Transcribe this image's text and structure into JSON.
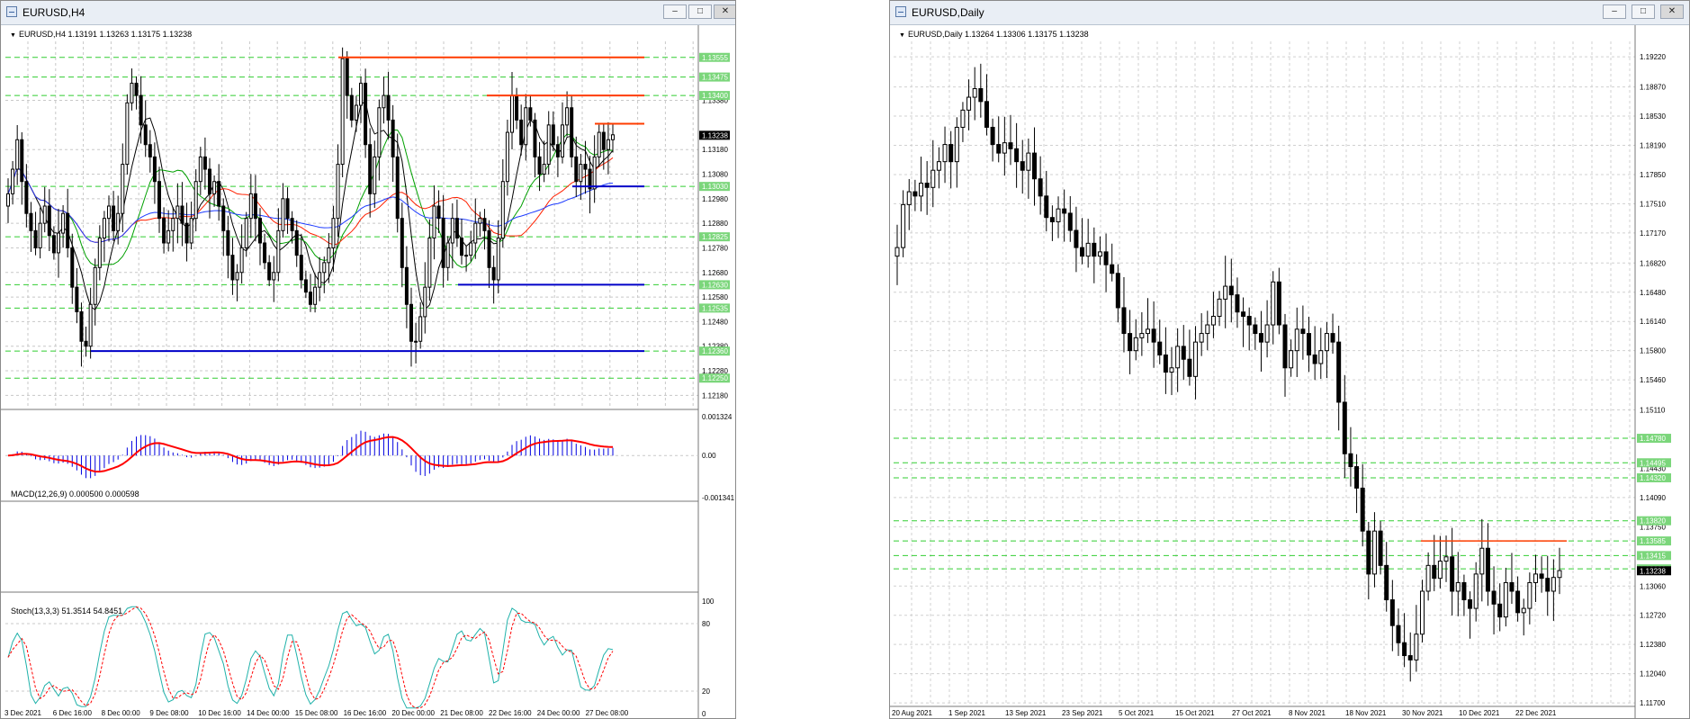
{
  "windows": [
    {
      "title": "EURUSD,H4",
      "quote": "EURUSD,H4  1.13191 1.13263 1.13175 1.13238",
      "price_axis": [
        "1.13380",
        "1.13180",
        "1.13080",
        "1.12980",
        "1.12880",
        "1.12780",
        "1.12680",
        "1.12580",
        "1.12480",
        "1.12380",
        "1.12280",
        "1.12180"
      ],
      "level_labels": [
        "1.13555",
        "1.13475",
        "1.13400",
        "1.13030",
        "1.12825",
        "1.12630",
        "1.12535",
        "1.12360",
        "1.12250"
      ],
      "current_price": "1.13238",
      "time_axis": [
        "3 Dec 2021",
        "6 Dec 16:00",
        "8 Dec 00:00",
        "9 Dec 08:00",
        "10 Dec 16:00",
        "14 Dec 00:00",
        "15 Dec 08:00",
        "16 Dec 16:00",
        "20 Dec 00:00",
        "21 Dec 08:00",
        "22 Dec 16:00",
        "24 Dec 00:00",
        "27 Dec 08:00"
      ],
      "macd_label": "MACD(12,26,9) 0.000500 0.000598",
      "macd_axis": [
        "0.001324",
        "0.00",
        "-0.001341"
      ],
      "stoch_label": "Stoch(13,3,3) 51.3514 54.8451",
      "stoch_axis": [
        "100",
        "80",
        "20",
        "0"
      ]
    },
    {
      "title": "EURUSD,Daily",
      "quote": "EURUSD,Daily  1.13264 1.13306 1.13175 1.13238",
      "price_axis": [
        "1.19220",
        "1.18870",
        "1.18530",
        "1.18190",
        "1.17850",
        "1.17510",
        "1.17170",
        "1.16820",
        "1.16480",
        "1.16140",
        "1.15800",
        "1.15460",
        "1.15110",
        "1.14430",
        "1.14090",
        "1.13750",
        "1.13060",
        "1.12720",
        "1.12380",
        "1.12040",
        "1.11700"
      ],
      "level_labels": [
        "1.14780",
        "1.14495",
        "1.14320",
        "1.13820",
        "1.13585",
        "1.13415",
        "1.13260"
      ],
      "current_price": "1.13238",
      "time_axis": [
        "20 Aug 2021",
        "1 Sep 2021",
        "13 Sep 2021",
        "23 Sep 2021",
        "5 Oct 2021",
        "15 Oct 2021",
        "27 Oct 2021",
        "8 Nov 2021",
        "18 Nov 2021",
        "30 Nov 2021",
        "10 Dec 2021",
        "22 Dec 2021"
      ]
    }
  ],
  "colors": {
    "bull_candle": "#ffffff",
    "bear_candle": "#000000",
    "resistance": "#ff3c00",
    "support": "#0000c8",
    "level_grid": "#32cd32",
    "level_label_bg": "#7bd67b",
    "ma_black": "#000000",
    "ma_green": "#00a000",
    "ma_red": "#ff2000",
    "ma_blue": "#1e3cff",
    "macd_hist": "#0000e0",
    "macd_signal": "#ff0000",
    "stoch_main": "#20b2aa",
    "stoch_signal": "#ff0000"
  },
  "chart_data": [
    {
      "type": "candlestick",
      "symbol": "EURUSD",
      "timeframe": "H4",
      "ylim": [
        1.1213,
        1.1362
      ],
      "ohlc_last": {
        "open": 1.13191,
        "high": 1.13263,
        "low": 1.13175,
        "close": 1.13238
      },
      "resistance_levels": [
        1.13555,
        1.134,
        1.13285
      ],
      "support_levels": [
        1.1303,
        1.1263,
        1.1236
      ],
      "closes": [
        1.13,
        1.131,
        1.1322,
        1.1305,
        1.1292,
        1.1285,
        1.1278,
        1.1288,
        1.1295,
        1.1283,
        1.1276,
        1.1284,
        1.1292,
        1.1278,
        1.1262,
        1.1252,
        1.124,
        1.1238,
        1.1255,
        1.127,
        1.1282,
        1.129,
        1.1295,
        1.1285,
        1.1292,
        1.1312,
        1.1337,
        1.1345,
        1.134,
        1.1328,
        1.132,
        1.1315,
        1.1305,
        1.129,
        1.128,
        1.1285,
        1.129,
        1.1295,
        1.1288,
        1.128,
        1.129,
        1.1305,
        1.1315,
        1.131,
        1.13,
        1.1305,
        1.1295,
        1.1285,
        1.1275,
        1.1265,
        1.1268,
        1.1278,
        1.129,
        1.13,
        1.129,
        1.128,
        1.1272,
        1.1265,
        1.1268,
        1.1285,
        1.1298,
        1.129,
        1.1285,
        1.1275,
        1.1265,
        1.126,
        1.1255,
        1.1262,
        1.1268,
        1.1272,
        1.1278,
        1.129,
        1.1312,
        1.1355,
        1.134,
        1.133,
        1.1336,
        1.1345,
        1.132,
        1.13,
        1.1315,
        1.1335,
        1.134,
        1.133,
        1.1315,
        1.129,
        1.127,
        1.1255,
        1.124,
        1.124,
        1.125,
        1.1262,
        1.1282,
        1.1295,
        1.129,
        1.127,
        1.128,
        1.129,
        1.1282,
        1.1275,
        1.1275,
        1.128,
        1.1288,
        1.129,
        1.1285,
        1.127,
        1.1265,
        1.1282,
        1.1305,
        1.1325,
        1.134,
        1.133,
        1.132,
        1.1335,
        1.133,
        1.1315,
        1.1308,
        1.1312,
        1.1328,
        1.132,
        1.1315,
        1.1328,
        1.1335,
        1.1315,
        1.1305,
        1.1312,
        1.131,
        1.1302,
        1.1315,
        1.1325,
        1.1318,
        1.1322,
        1.1324
      ],
      "macd_ylim": [
        -0.001341,
        0.001324
      ],
      "stoch_ylim": [
        0,
        100
      ],
      "stoch_levels": [
        80,
        20
      ],
      "stoch_last": {
        "main": 51.3514,
        "signal": 54.8451
      },
      "macd_last": {
        "main": 0.0005,
        "signal": 0.000598
      }
    },
    {
      "type": "candlestick",
      "symbol": "EURUSD",
      "timeframe": "Daily",
      "ylim": [
        1.1168,
        1.194
      ],
      "ohlc_last": {
        "open": 1.13264,
        "high": 1.13306,
        "low": 1.13175,
        "close": 1.13238
      },
      "resistance_levels": [
        1.13585
      ],
      "levels": [
        1.1478,
        1.14495,
        1.1432,
        1.1382,
        1.13585,
        1.13415,
        1.1326
      ],
      "closes": [
        1.17,
        1.175,
        1.1765,
        1.176,
        1.1775,
        1.177,
        1.179,
        1.18,
        1.182,
        1.18,
        1.184,
        1.186,
        1.1875,
        1.1885,
        1.187,
        1.184,
        1.182,
        1.181,
        1.1822,
        1.1815,
        1.18,
        1.179,
        1.181,
        1.178,
        1.176,
        1.1735,
        1.173,
        1.1745,
        1.174,
        1.172,
        1.17,
        1.169,
        1.1705,
        1.169,
        1.1695,
        1.168,
        1.167,
        1.163,
        1.16,
        1.158,
        1.1595,
        1.16,
        1.1605,
        1.159,
        1.1575,
        1.1555,
        1.156,
        1.1585,
        1.157,
        1.155,
        1.159,
        1.16,
        1.161,
        1.162,
        1.164,
        1.1655,
        1.1645,
        1.1625,
        1.162,
        1.161,
        1.16,
        1.159,
        1.161,
        1.166,
        1.161,
        1.156,
        1.158,
        1.1605,
        1.16,
        1.1575,
        1.1565,
        1.158,
        1.16,
        1.159,
        1.152,
        1.146,
        1.1445,
        1.142,
        1.137,
        1.132,
        1.137,
        1.133,
        1.129,
        1.126,
        1.124,
        1.1225,
        1.122,
        1.125,
        1.13,
        1.133,
        1.1315,
        1.1335,
        1.134,
        1.13,
        1.131,
        1.129,
        1.128,
        1.132,
        1.135,
        1.13,
        1.1285,
        1.127,
        1.131,
        1.13,
        1.1275,
        1.128,
        1.131,
        1.132,
        1.1315,
        1.13,
        1.1316,
        1.1324
      ]
    }
  ]
}
